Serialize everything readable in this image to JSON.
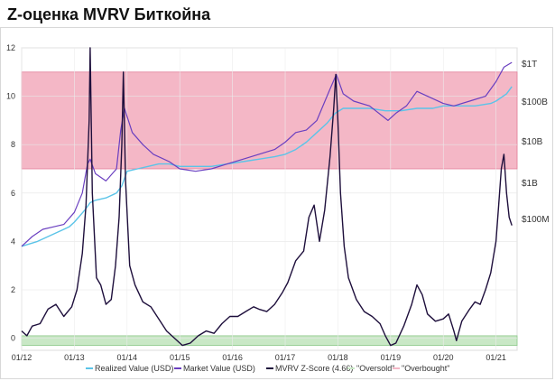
{
  "page": {
    "title": "Z-оценка MVRV Биткойна"
  },
  "chart_data": {
    "type": "line",
    "x_tick_labels": [
      "01/12",
      "01/13",
      "01/14",
      "01/15",
      "01/16",
      "01/17",
      "01/18",
      "01/19",
      "01/20",
      "01/21"
    ],
    "y_left_ticks": [
      0,
      2,
      4,
      6,
      8,
      10,
      12
    ],
    "y_left_range": [
      -0.5,
      12
    ],
    "y_right_ticks": [
      "$100M",
      "$1B",
      "$10B",
      "$100B",
      "$1T"
    ],
    "bands": [
      {
        "name": "\"Oversold\"",
        "from": -0.3,
        "to": 0.1,
        "color": "#c9e8c6"
      },
      {
        "name": "\"Overbought\"",
        "from": 7.0,
        "to": 11.0,
        "color": "#f4b7c6"
      }
    ],
    "series": [
      {
        "name": "Realized Value (USD)",
        "color": "#5bc4e8",
        "x": [
          2012.0,
          2012.3,
          2012.6,
          2012.9,
          2013.0,
          2013.2,
          2013.3,
          2013.4,
          2013.6,
          2013.8,
          2013.9,
          2014.0,
          2014.2,
          2014.4,
          2014.6,
          2014.8,
          2015.0,
          2015.3,
          2015.6,
          2015.9,
          2016.2,
          2016.5,
          2016.8,
          2017.0,
          2017.2,
          2017.4,
          2017.6,
          2017.8,
          2017.95,
          2018.1,
          2018.3,
          2018.6,
          2018.9,
          2019.2,
          2019.5,
          2019.8,
          2020.0,
          2020.3,
          2020.6,
          2020.9,
          2021.0,
          2021.2,
          2021.3
        ],
        "y": [
          3.8,
          4.0,
          4.3,
          4.6,
          4.8,
          5.3,
          5.6,
          5.7,
          5.8,
          6.0,
          6.3,
          6.9,
          7.0,
          7.1,
          7.2,
          7.2,
          7.1,
          7.1,
          7.1,
          7.2,
          7.3,
          7.4,
          7.5,
          7.6,
          7.8,
          8.1,
          8.5,
          8.9,
          9.3,
          9.5,
          9.5,
          9.5,
          9.4,
          9.4,
          9.5,
          9.5,
          9.6,
          9.6,
          9.6,
          9.7,
          9.8,
          10.1,
          10.4
        ]
      },
      {
        "name": "Market Value (USD)",
        "color": "#6a3fc0",
        "x": [
          2012.0,
          2012.2,
          2012.4,
          2012.6,
          2012.8,
          2013.0,
          2013.15,
          2013.25,
          2013.3,
          2013.4,
          2013.6,
          2013.8,
          2013.88,
          2013.95,
          2014.1,
          2014.3,
          2014.5,
          2014.8,
          2015.0,
          2015.3,
          2015.6,
          2015.9,
          2016.2,
          2016.5,
          2016.8,
          2017.0,
          2017.2,
          2017.4,
          2017.6,
          2017.85,
          2017.97,
          2018.1,
          2018.3,
          2018.6,
          2018.95,
          2019.1,
          2019.3,
          2019.5,
          2019.7,
          2020.0,
          2020.2,
          2020.5,
          2020.8,
          2021.0,
          2021.15,
          2021.3
        ],
        "y": [
          3.8,
          4.2,
          4.5,
          4.6,
          4.7,
          5.2,
          6.0,
          7.2,
          7.4,
          6.8,
          6.5,
          7.0,
          8.6,
          9.5,
          8.5,
          8.0,
          7.6,
          7.3,
          7.0,
          6.9,
          7.0,
          7.2,
          7.4,
          7.6,
          7.8,
          8.1,
          8.5,
          8.6,
          9.0,
          10.3,
          10.9,
          10.1,
          9.8,
          9.6,
          9.0,
          9.3,
          9.6,
          10.2,
          10.0,
          9.7,
          9.6,
          9.8,
          10.0,
          10.6,
          11.2,
          11.4
        ]
      },
      {
        "name": "MVRV Z-Score (4.66)",
        "color": "#1e0f3c",
        "x": [
          2012.0,
          2012.1,
          2012.2,
          2012.35,
          2012.5,
          2012.65,
          2012.8,
          2012.95,
          2013.05,
          2013.15,
          2013.22,
          2013.28,
          2013.3,
          2013.34,
          2013.42,
          2013.5,
          2013.6,
          2013.7,
          2013.78,
          2013.85,
          2013.9,
          2013.93,
          2013.97,
          2014.05,
          2014.15,
          2014.3,
          2014.45,
          2014.6,
          2014.75,
          2014.9,
          2015.05,
          2015.2,
          2015.35,
          2015.5,
          2015.65,
          2015.8,
          2015.95,
          2016.1,
          2016.25,
          2016.4,
          2016.5,
          2016.65,
          2016.8,
          2016.95,
          2017.05,
          2017.2,
          2017.35,
          2017.45,
          2017.55,
          2017.65,
          2017.75,
          2017.85,
          2017.92,
          2017.96,
          2018.0,
          2018.05,
          2018.12,
          2018.2,
          2018.35,
          2018.5,
          2018.65,
          2018.8,
          2018.9,
          2019.0,
          2019.1,
          2019.25,
          2019.4,
          2019.5,
          2019.6,
          2019.7,
          2019.85,
          2020.0,
          2020.1,
          2020.2,
          2020.25,
          2020.35,
          2020.5,
          2020.6,
          2020.7,
          2020.8,
          2020.9,
          2021.0,
          2021.05,
          2021.1,
          2021.15,
          2021.2,
          2021.25,
          2021.3
        ],
        "y": [
          0.3,
          0.1,
          0.5,
          0.6,
          1.2,
          1.4,
          0.9,
          1.3,
          2.0,
          3.5,
          5.5,
          9.0,
          12.0,
          6.0,
          2.5,
          2.2,
          1.4,
          1.6,
          3.0,
          5.0,
          8.0,
          11.0,
          6.5,
          3.0,
          2.2,
          1.5,
          1.3,
          0.8,
          0.3,
          0.0,
          -0.3,
          -0.2,
          0.1,
          0.3,
          0.2,
          0.6,
          0.9,
          0.9,
          1.1,
          1.3,
          1.2,
          1.1,
          1.4,
          1.9,
          2.3,
          3.2,
          3.6,
          5.0,
          5.5,
          4.0,
          5.3,
          7.5,
          9.5,
          10.9,
          9.0,
          6.0,
          3.8,
          2.5,
          1.6,
          1.1,
          0.9,
          0.6,
          0.1,
          -0.3,
          -0.2,
          0.5,
          1.4,
          2.2,
          1.8,
          1.0,
          0.7,
          0.8,
          1.0,
          0.3,
          -0.1,
          0.7,
          1.2,
          1.5,
          1.4,
          2.0,
          2.7,
          4.0,
          5.5,
          7.0,
          7.6,
          6.0,
          5.0,
          4.66
        ]
      }
    ],
    "legend": {
      "placement": "bottom",
      "entries": [
        {
          "label": "Realized Value (USD)",
          "color": "#5bc4e8"
        },
        {
          "label": "Market Value (USD)",
          "color": "#6a3fc0"
        },
        {
          "label": "MVRV Z-Score (4.66)",
          "color": "#1e0f3c"
        },
        {
          "label": "\"Oversold\"",
          "color": "#c9e8c6"
        },
        {
          "label": "\"Overbought\"",
          "color": "#f4b7c6"
        }
      ]
    },
    "grid": true,
    "xlabel": "",
    "ylabel": ""
  }
}
